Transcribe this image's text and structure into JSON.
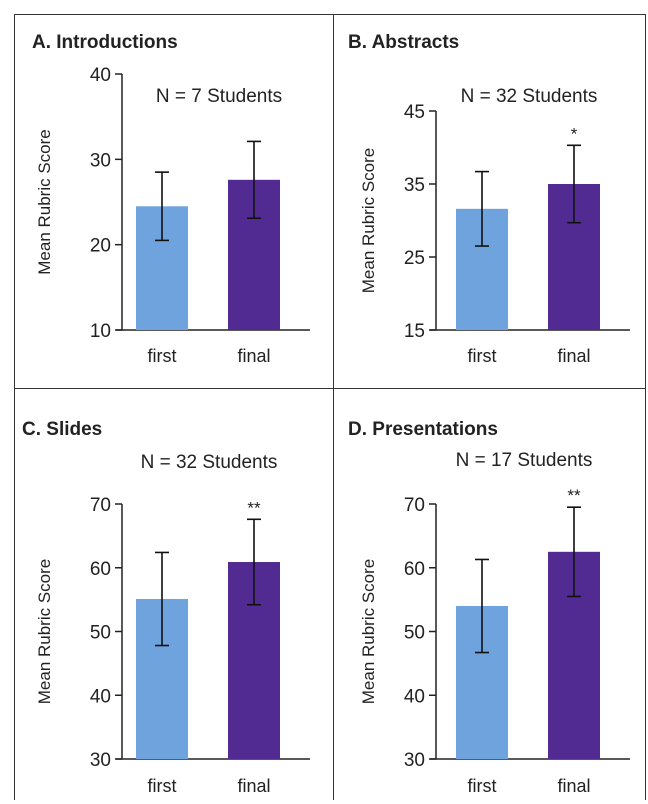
{
  "chart_data": [
    {
      "type": "bar",
      "title": "A. Introductions",
      "subtitle": "N = 7 Students",
      "ylabel": "Mean Rubric Score",
      "xlabel": "",
      "categories": [
        "first",
        "final"
      ],
      "values": [
        24.5,
        27.6
      ],
      "error": [
        4.0,
        4.5
      ],
      "significance": [
        "",
        ""
      ],
      "ylim": [
        10,
        40
      ],
      "yticks": [
        10,
        20,
        30,
        40
      ]
    },
    {
      "type": "bar",
      "title": "B. Abstracts",
      "subtitle": "N = 32 Students",
      "ylabel": "Mean Rubric Score",
      "xlabel": "",
      "categories": [
        "first",
        "final"
      ],
      "values": [
        31.6,
        35.0
      ],
      "error": [
        5.1,
        5.3
      ],
      "significance": [
        "",
        "*"
      ],
      "ylim": [
        15,
        45
      ],
      "yticks": [
        15,
        25,
        35,
        45
      ]
    },
    {
      "type": "bar",
      "title": "C. Slides",
      "subtitle": "N = 32 Students",
      "ylabel": "Mean Rubric Score",
      "xlabel": "",
      "categories": [
        "first",
        "final"
      ],
      "values": [
        55.1,
        60.9
      ],
      "error": [
        7.3,
        6.7
      ],
      "significance": [
        "",
        "**"
      ],
      "ylim": [
        30,
        70
      ],
      "yticks": [
        30,
        40,
        50,
        60,
        70
      ]
    },
    {
      "type": "bar",
      "title": "D. Presentations",
      "subtitle": "N = 17 Students",
      "ylabel": "Mean Rubric Score",
      "xlabel": "",
      "categories": [
        "first",
        "final"
      ],
      "values": [
        54.0,
        62.5
      ],
      "error": [
        7.3,
        7.0
      ],
      "significance": [
        "",
        "**"
      ],
      "ylim": [
        30,
        70
      ],
      "yticks": [
        30,
        40,
        50,
        60,
        70
      ]
    }
  ],
  "colors": {
    "first": "#6fa3dd",
    "final": "#522b92",
    "axis": "#222222",
    "border": "#333333"
  }
}
